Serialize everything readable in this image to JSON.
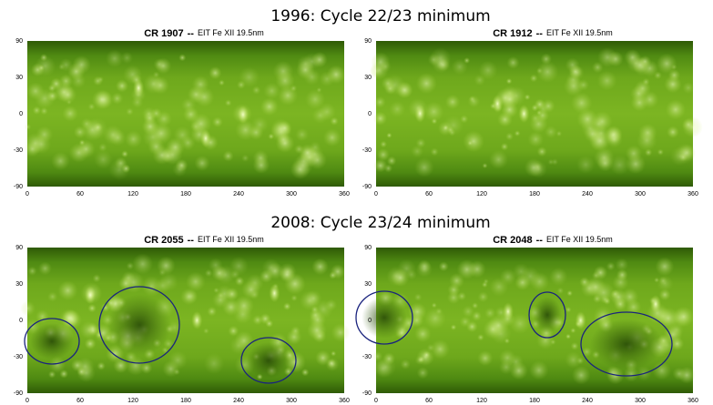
{
  "sections": [
    {
      "title": "1996: Cycle 22/23 minimum",
      "panels": [
        {
          "title": "CR 1907",
          "separator": "--",
          "instrument": "EIT Fe XII 19.5nm"
        },
        {
          "title": "CR 1912",
          "separator": "--",
          "instrument": "EIT Fe XII 19.5nm"
        }
      ]
    },
    {
      "title": "2008: Cycle 23/24 minimum",
      "panels": [
        {
          "title": "CR 2055",
          "separator": "--",
          "instrument": "EIT Fe XII 19.5nm"
        },
        {
          "title": "CR 2048",
          "separator": "--",
          "instrument": "EIT Fe XII 19.5nm"
        }
      ]
    }
  ],
  "axes": {
    "xticks": [
      0,
      60,
      120,
      180,
      240,
      300,
      360
    ],
    "yticks": [
      90,
      30,
      0,
      -30,
      -90
    ]
  }
}
